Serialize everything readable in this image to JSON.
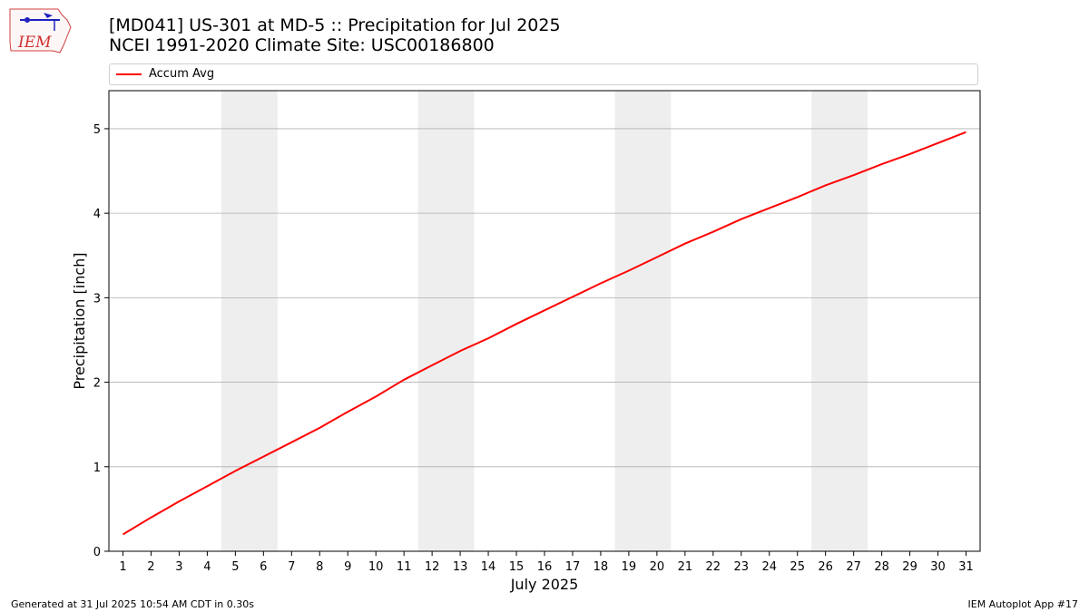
{
  "header": {
    "title_line1": "[MD041] US-301 at MD-5  :: Precipitation for Jul 2025",
    "title_line2": "NCEI 1991-2020 Climate Site: USC00186800",
    "logo_text": "IEM"
  },
  "footer": {
    "generated": "Generated at 31 Jul 2025 10:54 AM CDT in 0.30s",
    "app": "IEM Autoplot App #17"
  },
  "colors": {
    "series": "#ff0000",
    "weekend_band": "#eeeeee",
    "grid": "#b0b0b0"
  },
  "chart_data": {
    "type": "line",
    "xlabel": "July 2025",
    "ylabel": "Precipitation [inch]",
    "xlim": [
      0.5,
      31.5
    ],
    "ylim": [
      0,
      5.45
    ],
    "yticks": [
      0,
      1,
      2,
      3,
      4,
      5
    ],
    "xticks": [
      1,
      2,
      3,
      4,
      5,
      6,
      7,
      8,
      9,
      10,
      11,
      12,
      13,
      14,
      15,
      16,
      17,
      18,
      19,
      20,
      21,
      22,
      23,
      24,
      25,
      26,
      27,
      28,
      29,
      30,
      31
    ],
    "grid": "horizontal",
    "legend": "top",
    "shaded_day_ranges": [
      [
        4.5,
        6.5
      ],
      [
        11.5,
        13.5
      ],
      [
        18.5,
        20.5
      ],
      [
        25.5,
        27.5
      ]
    ],
    "series": [
      {
        "name": "Accum Avg",
        "x": [
          1,
          2,
          3,
          4,
          5,
          6,
          7,
          8,
          9,
          10,
          11,
          12,
          13,
          14,
          15,
          16,
          17,
          18,
          19,
          20,
          21,
          22,
          23,
          24,
          25,
          26,
          27,
          28,
          29,
          30,
          31
        ],
        "values": [
          0.2,
          0.4,
          0.59,
          0.77,
          0.95,
          1.12,
          1.29,
          1.46,
          1.65,
          1.83,
          2.03,
          2.2,
          2.37,
          2.52,
          2.69,
          2.85,
          3.01,
          3.17,
          3.32,
          3.48,
          3.64,
          3.78,
          3.93,
          4.06,
          4.19,
          4.33,
          4.45,
          4.58,
          4.7,
          4.83,
          4.96
        ]
      }
    ]
  }
}
